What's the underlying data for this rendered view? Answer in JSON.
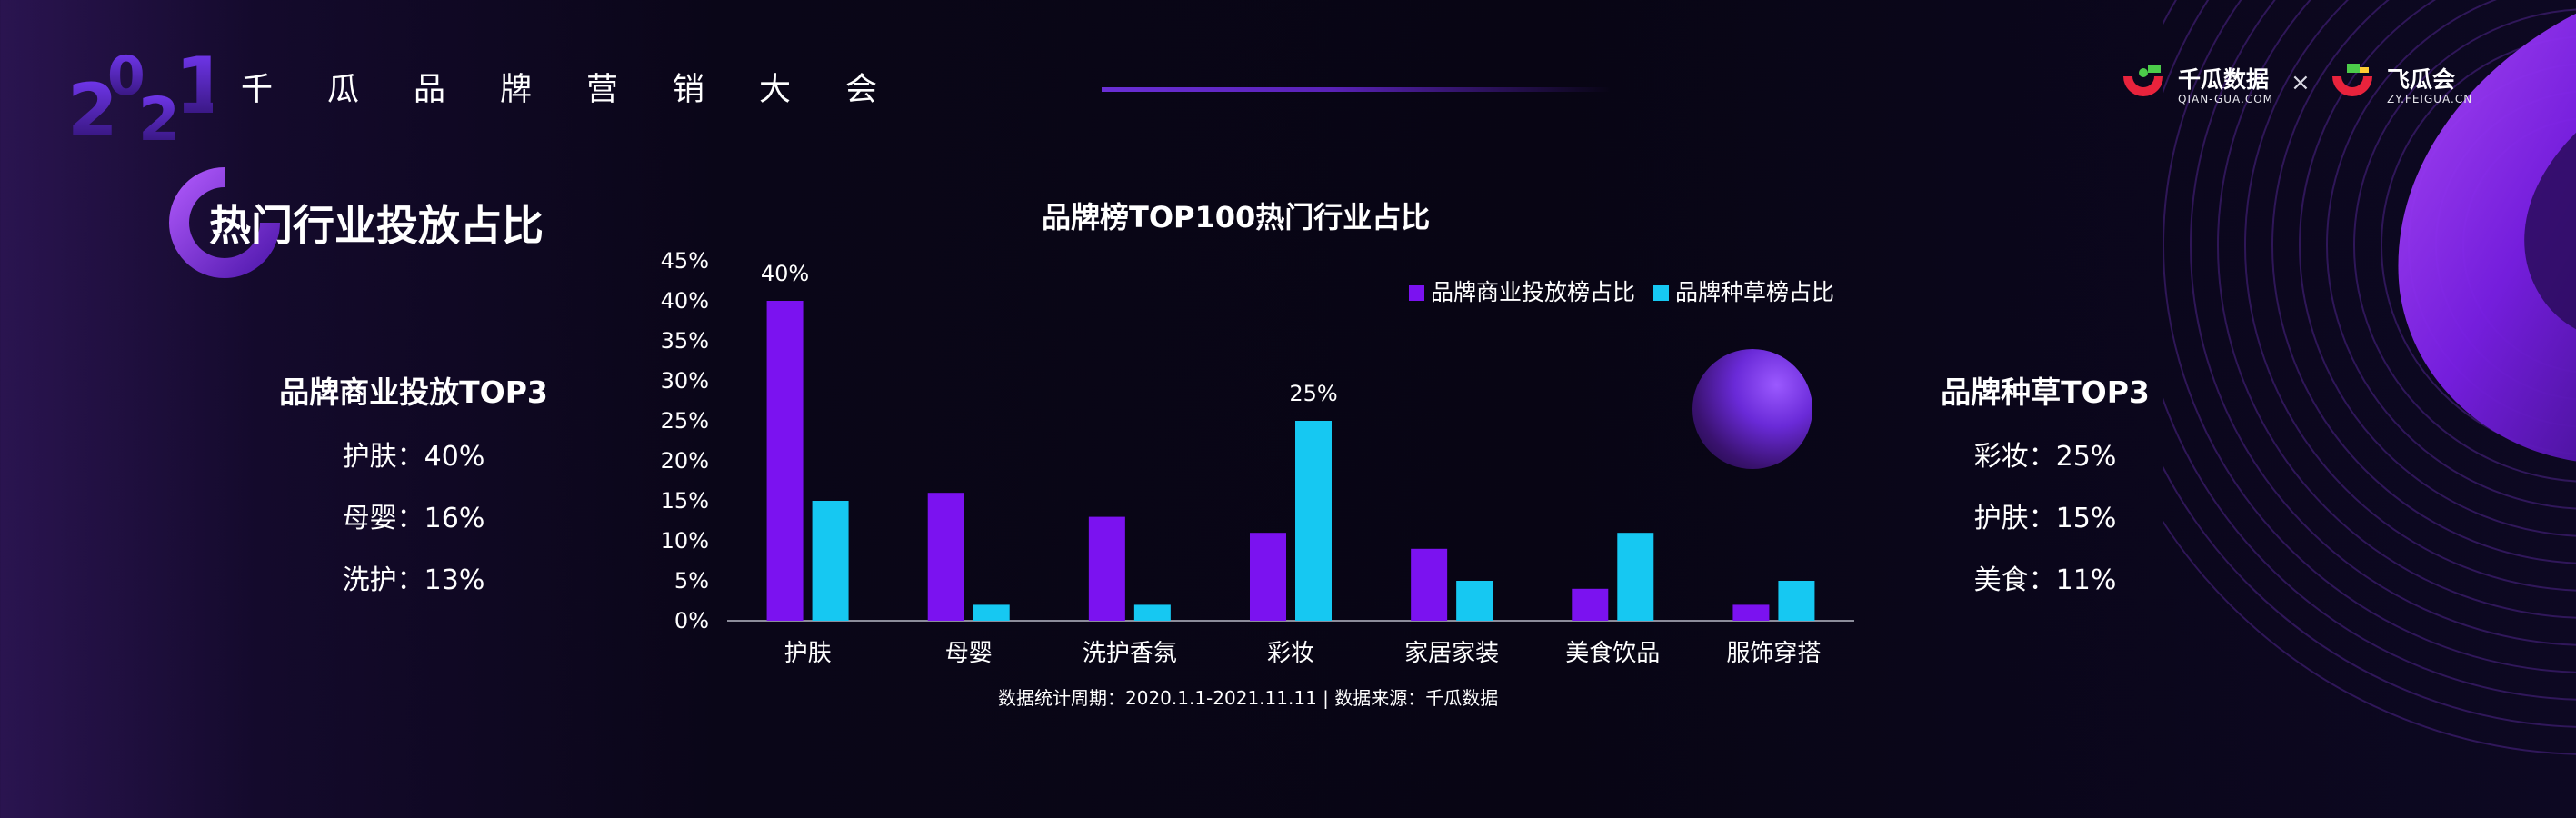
{
  "header": {
    "year": [
      "2",
      "0",
      "2",
      "1"
    ],
    "event_title": "千瓜品牌营销大会",
    "logo_left": {
      "name": "千瓜数据",
      "url": "QIAN-GUA.COM"
    },
    "logo_separator": "×",
    "logo_right": {
      "name": "飞瓜会",
      "url": "ZY.FEIGUA.CN"
    }
  },
  "section": {
    "title": "热门行业投放占比"
  },
  "left_panel": {
    "title": "品牌商业投放TOP3",
    "items": [
      "护肤：40%",
      "母婴：16%",
      "洗护：13%"
    ]
  },
  "right_panel": {
    "title": "品牌种草TOP3",
    "items": [
      "彩妆：25%",
      "护肤：15%",
      "美食：11%"
    ]
  },
  "colors": {
    "series_1": "#7b12f0",
    "series_2": "#16c8f2",
    "accent": "#8a2cff",
    "logo_red": "#e8233c",
    "logo_green": "#4ccb4a"
  },
  "chart_data": {
    "type": "bar",
    "title": "品牌榜TOP100热门行业占比",
    "categories": [
      "护肤",
      "母婴",
      "洗护香氛",
      "彩妆",
      "家居家装",
      "美食饮品",
      "服饰穿搭"
    ],
    "series": [
      {
        "name": "品牌商业投放榜占比",
        "values": [
          40,
          16,
          13,
          11,
          9,
          4,
          2
        ]
      },
      {
        "name": "品牌种草榜占比",
        "values": [
          15,
          2,
          2,
          25,
          5,
          11,
          5
        ]
      }
    ],
    "y_ticks": [
      "0%",
      "5%",
      "10%",
      "15%",
      "20%",
      "25%",
      "30%",
      "35%",
      "40%",
      "45%"
    ],
    "ylim": [
      0,
      45
    ],
    "data_labels": [
      {
        "series": 0,
        "category": 0,
        "text": "40%"
      },
      {
        "series": 1,
        "category": 3,
        "text": "25%"
      }
    ],
    "grid": false,
    "legend_position": "top-right",
    "footnote": "数据统计周期：2020.1.1-2021.11.11 | 数据来源：千瓜数据"
  }
}
